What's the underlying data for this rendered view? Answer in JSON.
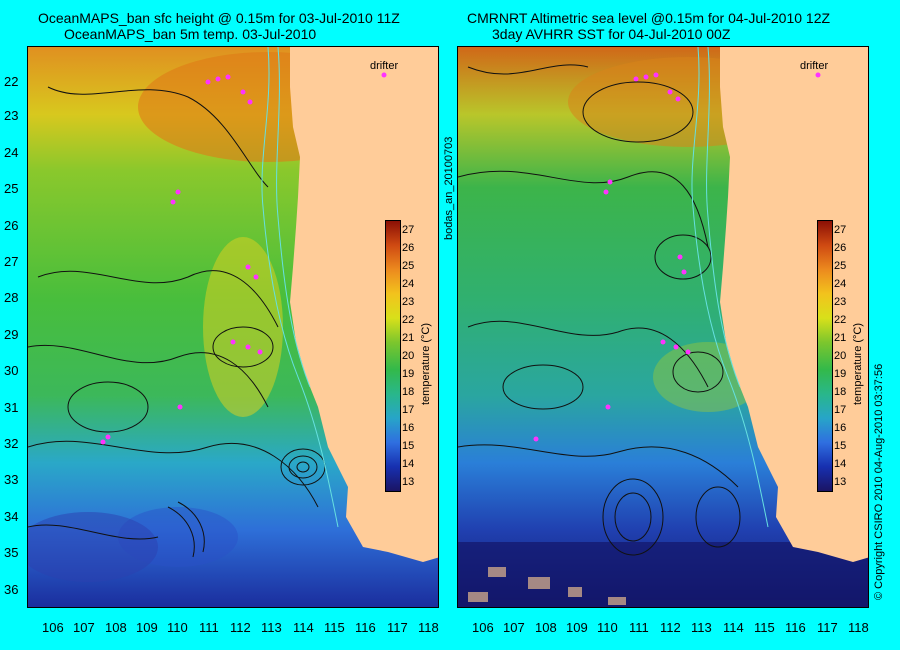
{
  "left_panel": {
    "title_line1": "OceanMAPS_ban sfc height @ 0.15m for 03-Jul-2010 11Z",
    "title_line2": "OceanMAPS_ban 5m temp. 03-Jul-2010",
    "drifter_label": "drifter"
  },
  "right_panel": {
    "title_line1": "CMRNRT Altimetric sea level  @0.15m  for 04-Jul-2010 12Z",
    "title_line2": "3day AVHRR SST for 04-Jul-2010 00Z",
    "drifter_label": "drifter"
  },
  "axes": {
    "latitudes": [
      "22",
      "23",
      "24",
      "25",
      "26",
      "27",
      "28",
      "29",
      "30",
      "31",
      "32",
      "33",
      "34",
      "35",
      "36"
    ],
    "longitudes": [
      "106",
      "107",
      "108",
      "109",
      "110",
      "111",
      "112",
      "113",
      "114",
      "115",
      "116",
      "117",
      "118"
    ]
  },
  "colorbar": {
    "label": "temperature (°C)",
    "ticks": [
      "27",
      "26",
      "25",
      "24",
      "23",
      "22",
      "21",
      "20",
      "19",
      "18",
      "17",
      "16",
      "15",
      "14",
      "13"
    ],
    "min": 13,
    "max": 27
  },
  "side_text": {
    "middle": "bodas_an_20100703",
    "right": "© Copyright CSIRO 2010    04-Aug-2010 03:37:56"
  },
  "colors": {
    "background": "#00ffff",
    "land": "#ffcc99",
    "drifter": "#ff33ff"
  },
  "icons": [
    "drifter-marker-icon"
  ]
}
